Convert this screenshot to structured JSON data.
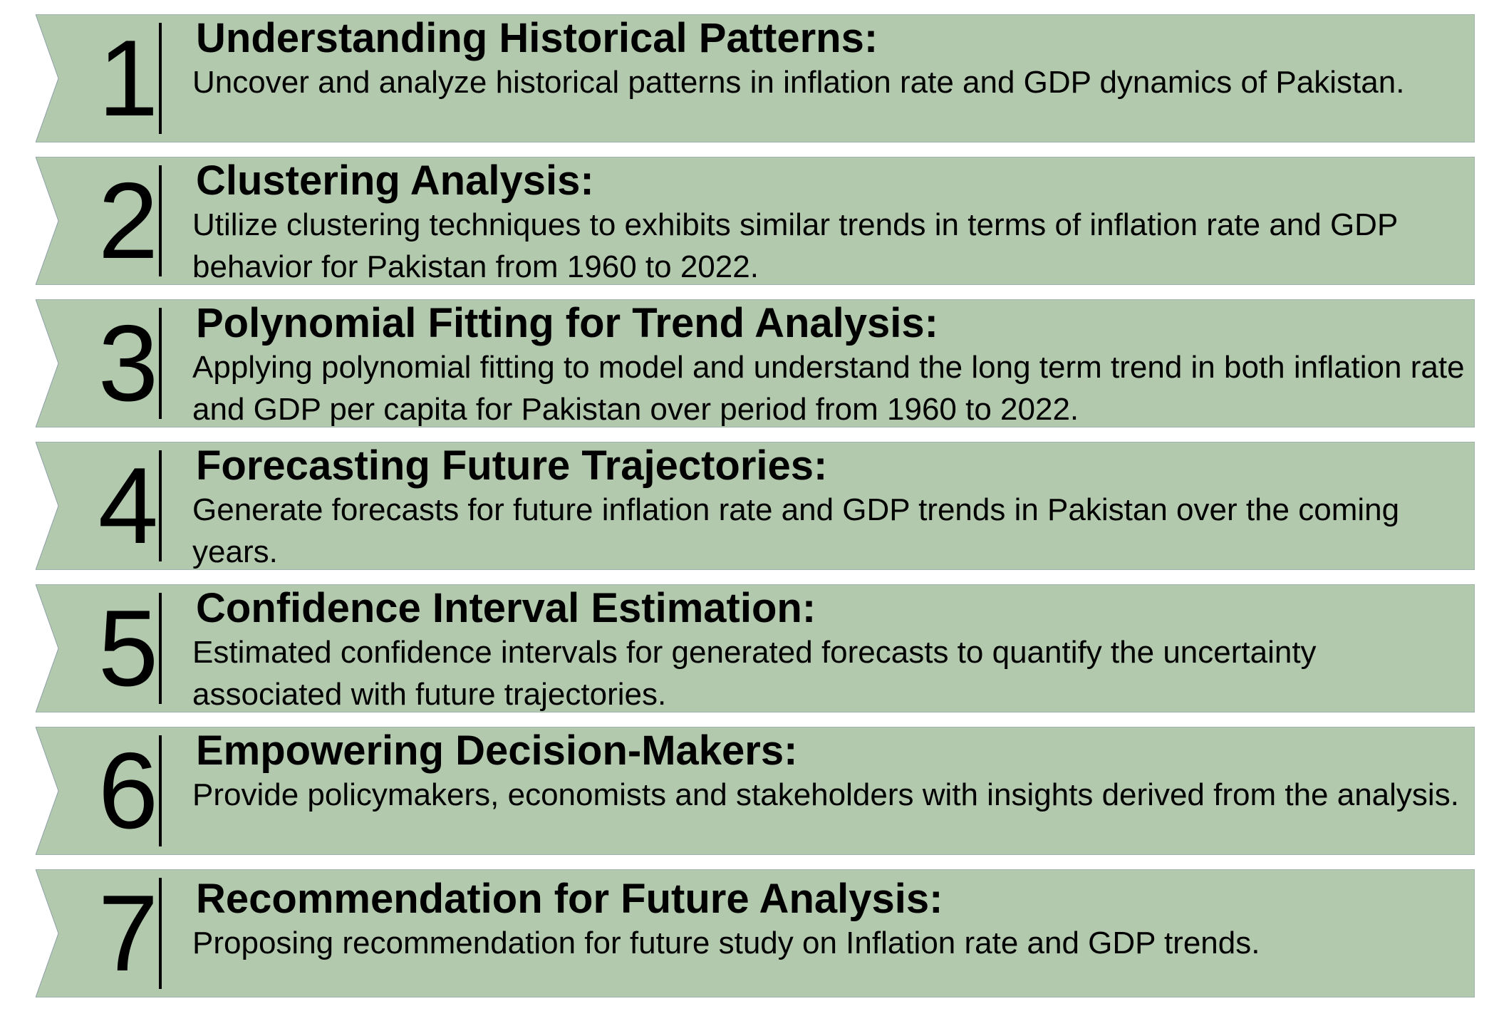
{
  "colors": {
    "banner_fill": "#b2c9ae",
    "banner_edge": "#8e9fa8",
    "text": "#000000"
  },
  "items": [
    {
      "number": "1",
      "title": "Understanding Historical Patterns:",
      "description": "Uncover and analyze historical patterns in inflation rate and GDP dynamics of Pakistan."
    },
    {
      "number": "2",
      "title": "Clustering Analysis:",
      "description": "Utilize clustering techniques to exhibits similar trends in terms of inflation rate and GDP behavior for Pakistan from 1960 to 2022."
    },
    {
      "number": "3",
      "title": "Polynomial Fitting for Trend Analysis:",
      "description": "Applying polynomial fitting to model and understand the long term trend in both inflation rate and GDP per capita for Pakistan over period from 1960 to 2022."
    },
    {
      "number": "4",
      "title": "Forecasting Future Trajectories:",
      "description": "Generate forecasts for future inflation rate and GDP trends in Pakistan over the coming years."
    },
    {
      "number": "5",
      "title": "Confidence Interval Estimation:",
      "description": "Estimated confidence intervals for generated forecasts to quantify the uncertainty associated with future trajectories."
    },
    {
      "number": "6",
      "title": "Empowering Decision-Makers:",
      "description": "Provide policymakers, economists and stakeholders with insights derived from the analysis."
    },
    {
      "number": "7",
      "title": "Recommendation for Future Analysis:",
      "description": "Proposing recommendation for future study on Inflation rate and GDP trends."
    }
  ]
}
